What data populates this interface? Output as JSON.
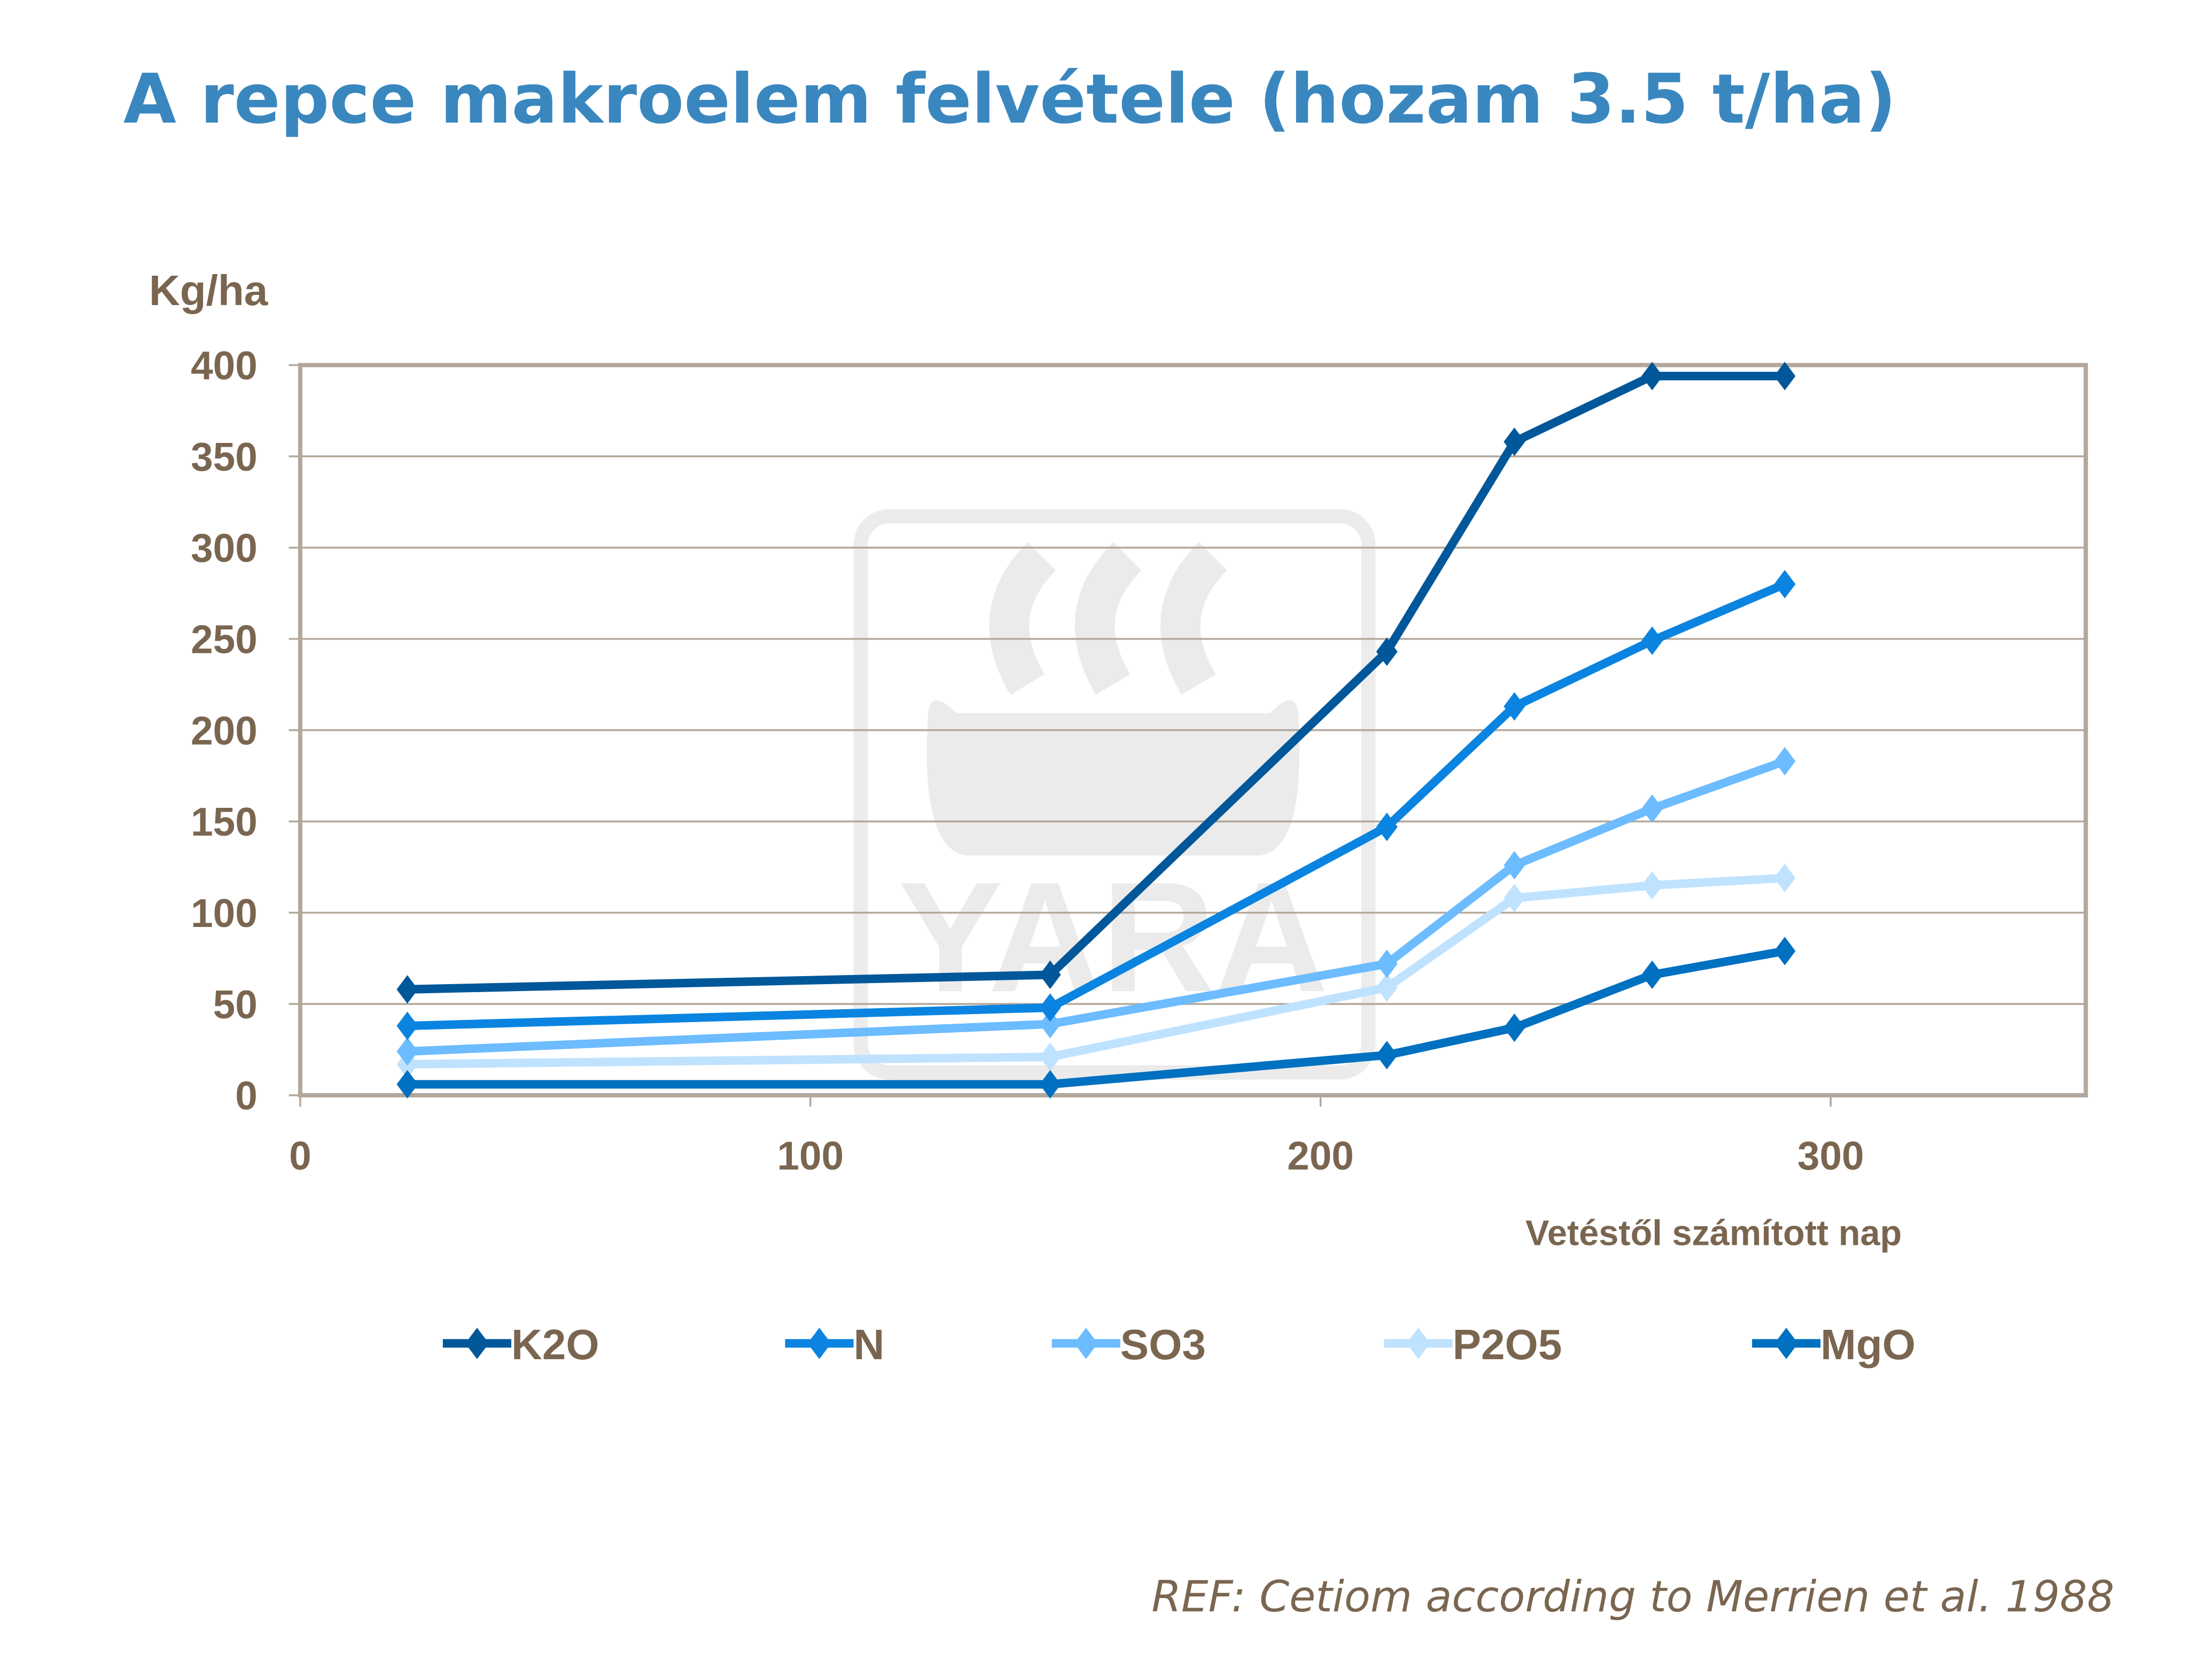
{
  "chart_data": {
    "type": "line",
    "title": "A repce makroelem felvétele (hozam 3.5 t/ha)",
    "ylabel": "Kg/ha",
    "xlabel": "Vetéstől számított nap",
    "xlim": [
      0,
      350
    ],
    "ylim": [
      0,
      400
    ],
    "xticks": [
      "0",
      "100",
      "200",
      "300"
    ],
    "yticks": [
      "0",
      "50",
      "100",
      "150",
      "200",
      "250",
      "300",
      "350",
      "400"
    ],
    "grid": true,
    "legend_placement": "bottom",
    "marker": "diamond",
    "x": [
      21,
      147,
      213,
      238,
      265,
      291
    ],
    "series": [
      {
        "name": "K2O",
        "color": "#00579a",
        "values": [
          58,
          66,
          243,
          358,
          394,
          394
        ]
      },
      {
        "name": "N",
        "color": "#0a84e0",
        "values": [
          38,
          48,
          147,
          213,
          249,
          280
        ]
      },
      {
        "name": "SO3",
        "color": "#6cbcff",
        "values": [
          24,
          39,
          72,
          126,
          157,
          183
        ]
      },
      {
        "name": "P2O5",
        "color": "#bfe2ff",
        "values": [
          17,
          21,
          59,
          108,
          115,
          119
        ]
      },
      {
        "name": "MgO",
        "color": "#0070c0",
        "values": [
          6,
          6,
          22,
          37,
          66,
          79
        ]
      }
    ],
    "colors": {
      "title": "#3a87bf",
      "axis_text": "#7a6650",
      "grid": "#b3a79b"
    }
  },
  "watermark": "YARA",
  "reference": "REF: Cetiom according to Merrien et al. 1988"
}
